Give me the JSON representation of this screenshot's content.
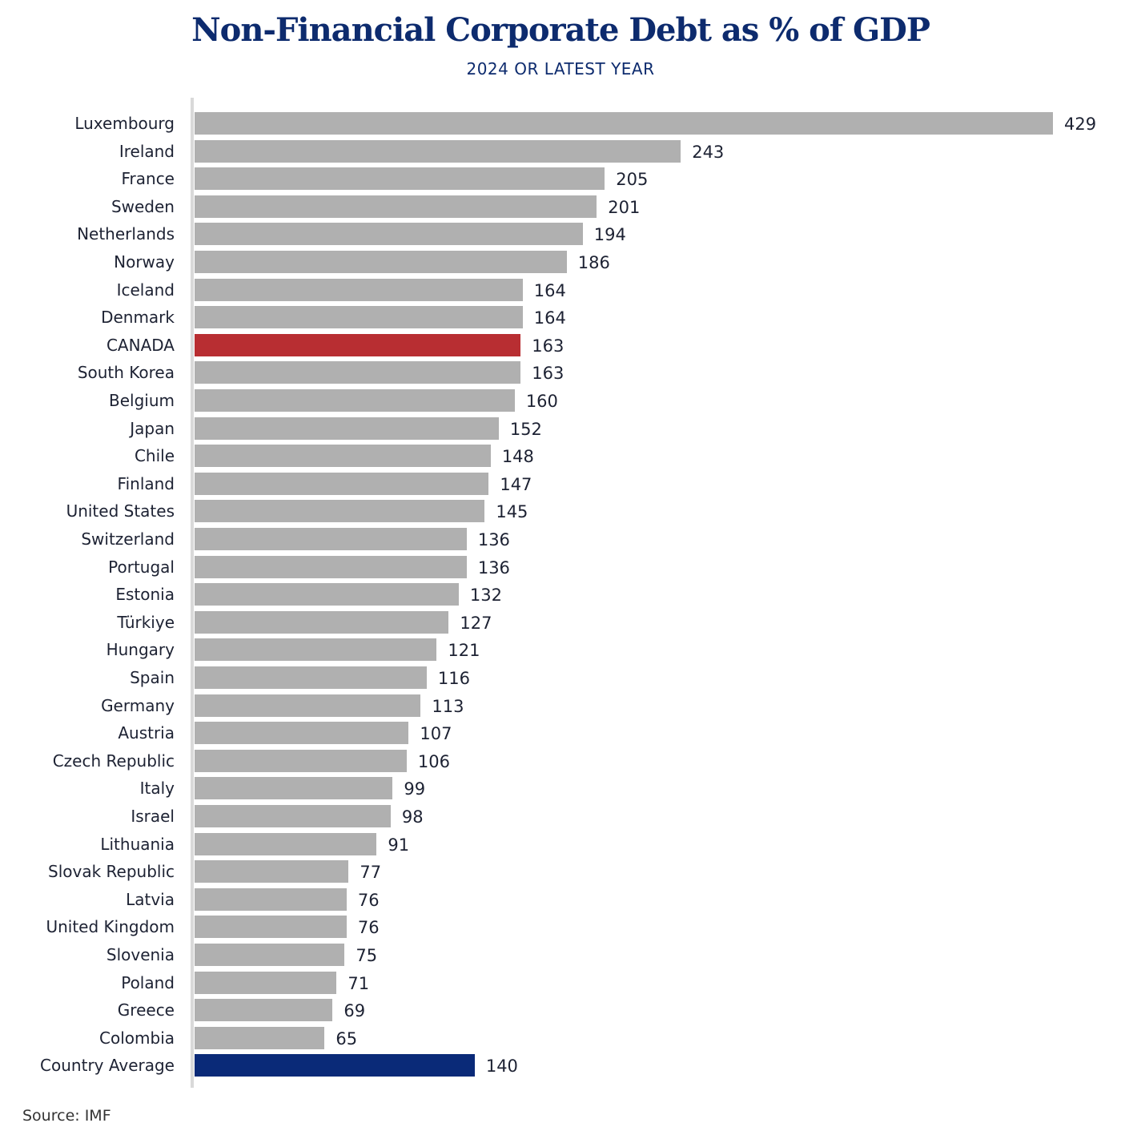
{
  "chart_data": {
    "type": "bar",
    "orientation": "horizontal",
    "title": "Non-Financial Corporate Debt as % of GDP",
    "subtitle": "2024 OR LATEST YEAR",
    "categories": [
      "Luxembourg",
      "Ireland",
      "France",
      "Sweden",
      "Netherlands",
      "Norway",
      "Iceland",
      "Denmark",
      "CANADA",
      "South Korea",
      "Belgium",
      "Japan",
      "Chile",
      "Finland",
      "United States",
      "Switzerland",
      "Portugal",
      "Estonia",
      "Türkiye",
      "Hungary",
      "Spain",
      "Germany",
      "Austria",
      "Czech Republic",
      "Italy",
      "Israel",
      "Lithuania",
      "Slovak Republic",
      "Latvia",
      "United Kingdom",
      "Slovenia",
      "Poland",
      "Greece",
      "Colombia",
      "Country Average"
    ],
    "values": [
      429,
      243,
      205,
      201,
      194,
      186,
      164,
      164,
      163,
      163,
      160,
      152,
      148,
      147,
      145,
      136,
      136,
      132,
      127,
      121,
      116,
      113,
      107,
      106,
      99,
      98,
      91,
      77,
      76,
      76,
      75,
      71,
      69,
      65,
      140
    ],
    "highlight": {
      "CANADA": "#b82e32",
      "Country Average": "#0a2a78"
    },
    "default_color": "#b0b0b0",
    "xlim": [
      0,
      429
    ],
    "grid": false,
    "source": "Source: IMF"
  }
}
